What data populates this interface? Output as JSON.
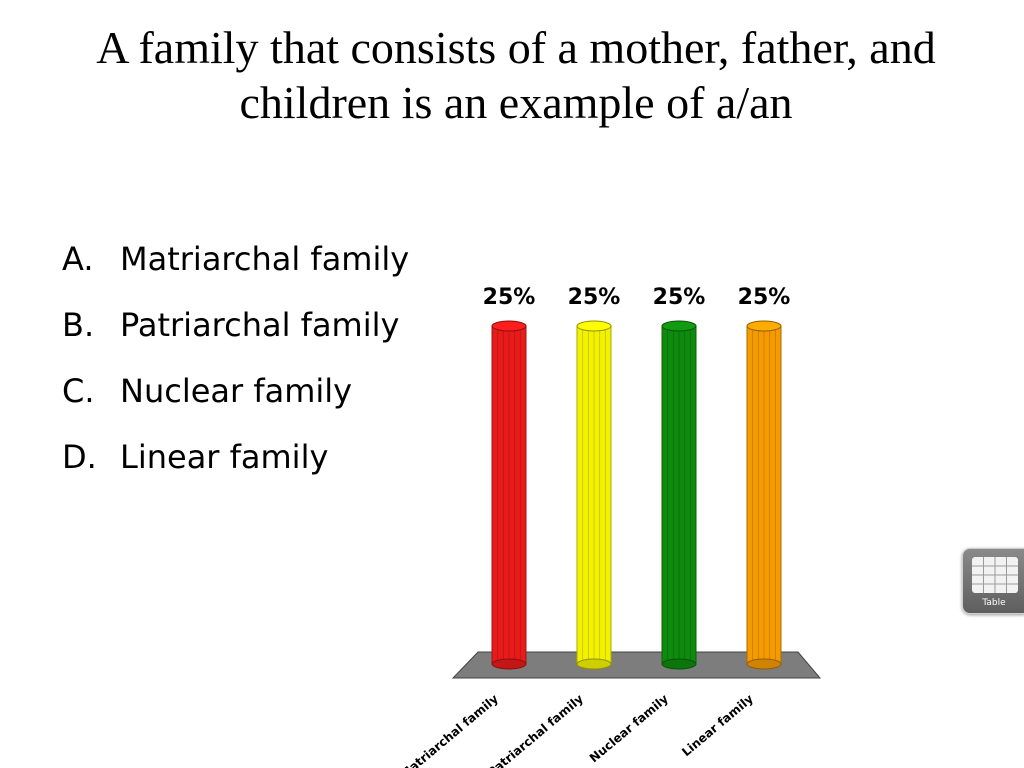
{
  "slide": {
    "question": "A family that consists of a mother, father, and children is an example of a/an",
    "answers": [
      {
        "letter": "A.",
        "text": "Matriarchal family"
      },
      {
        "letter": "B.",
        "text": "Patriarchal family"
      },
      {
        "letter": "C.",
        "text": "Nuclear family"
      },
      {
        "letter": "D.",
        "text": "Linear family"
      }
    ]
  },
  "chart_data": {
    "type": "bar",
    "categories": [
      "Matriarchal family",
      "Patriarchal family",
      "Nuclear family",
      "Linear family"
    ],
    "values": [
      25,
      25,
      25,
      25
    ],
    "value_labels": [
      "25%",
      "25%",
      "25%",
      "25%"
    ],
    "ylim": [
      0,
      25
    ],
    "colors": [
      "#e81a1a",
      "#f2f200",
      "#0e8a0e",
      "#f59a00"
    ],
    "floor_color": "#7d7d7d",
    "grid": false,
    "legend": "none"
  },
  "widget": {
    "label": "Table",
    "icon": "table-grid-icon"
  }
}
